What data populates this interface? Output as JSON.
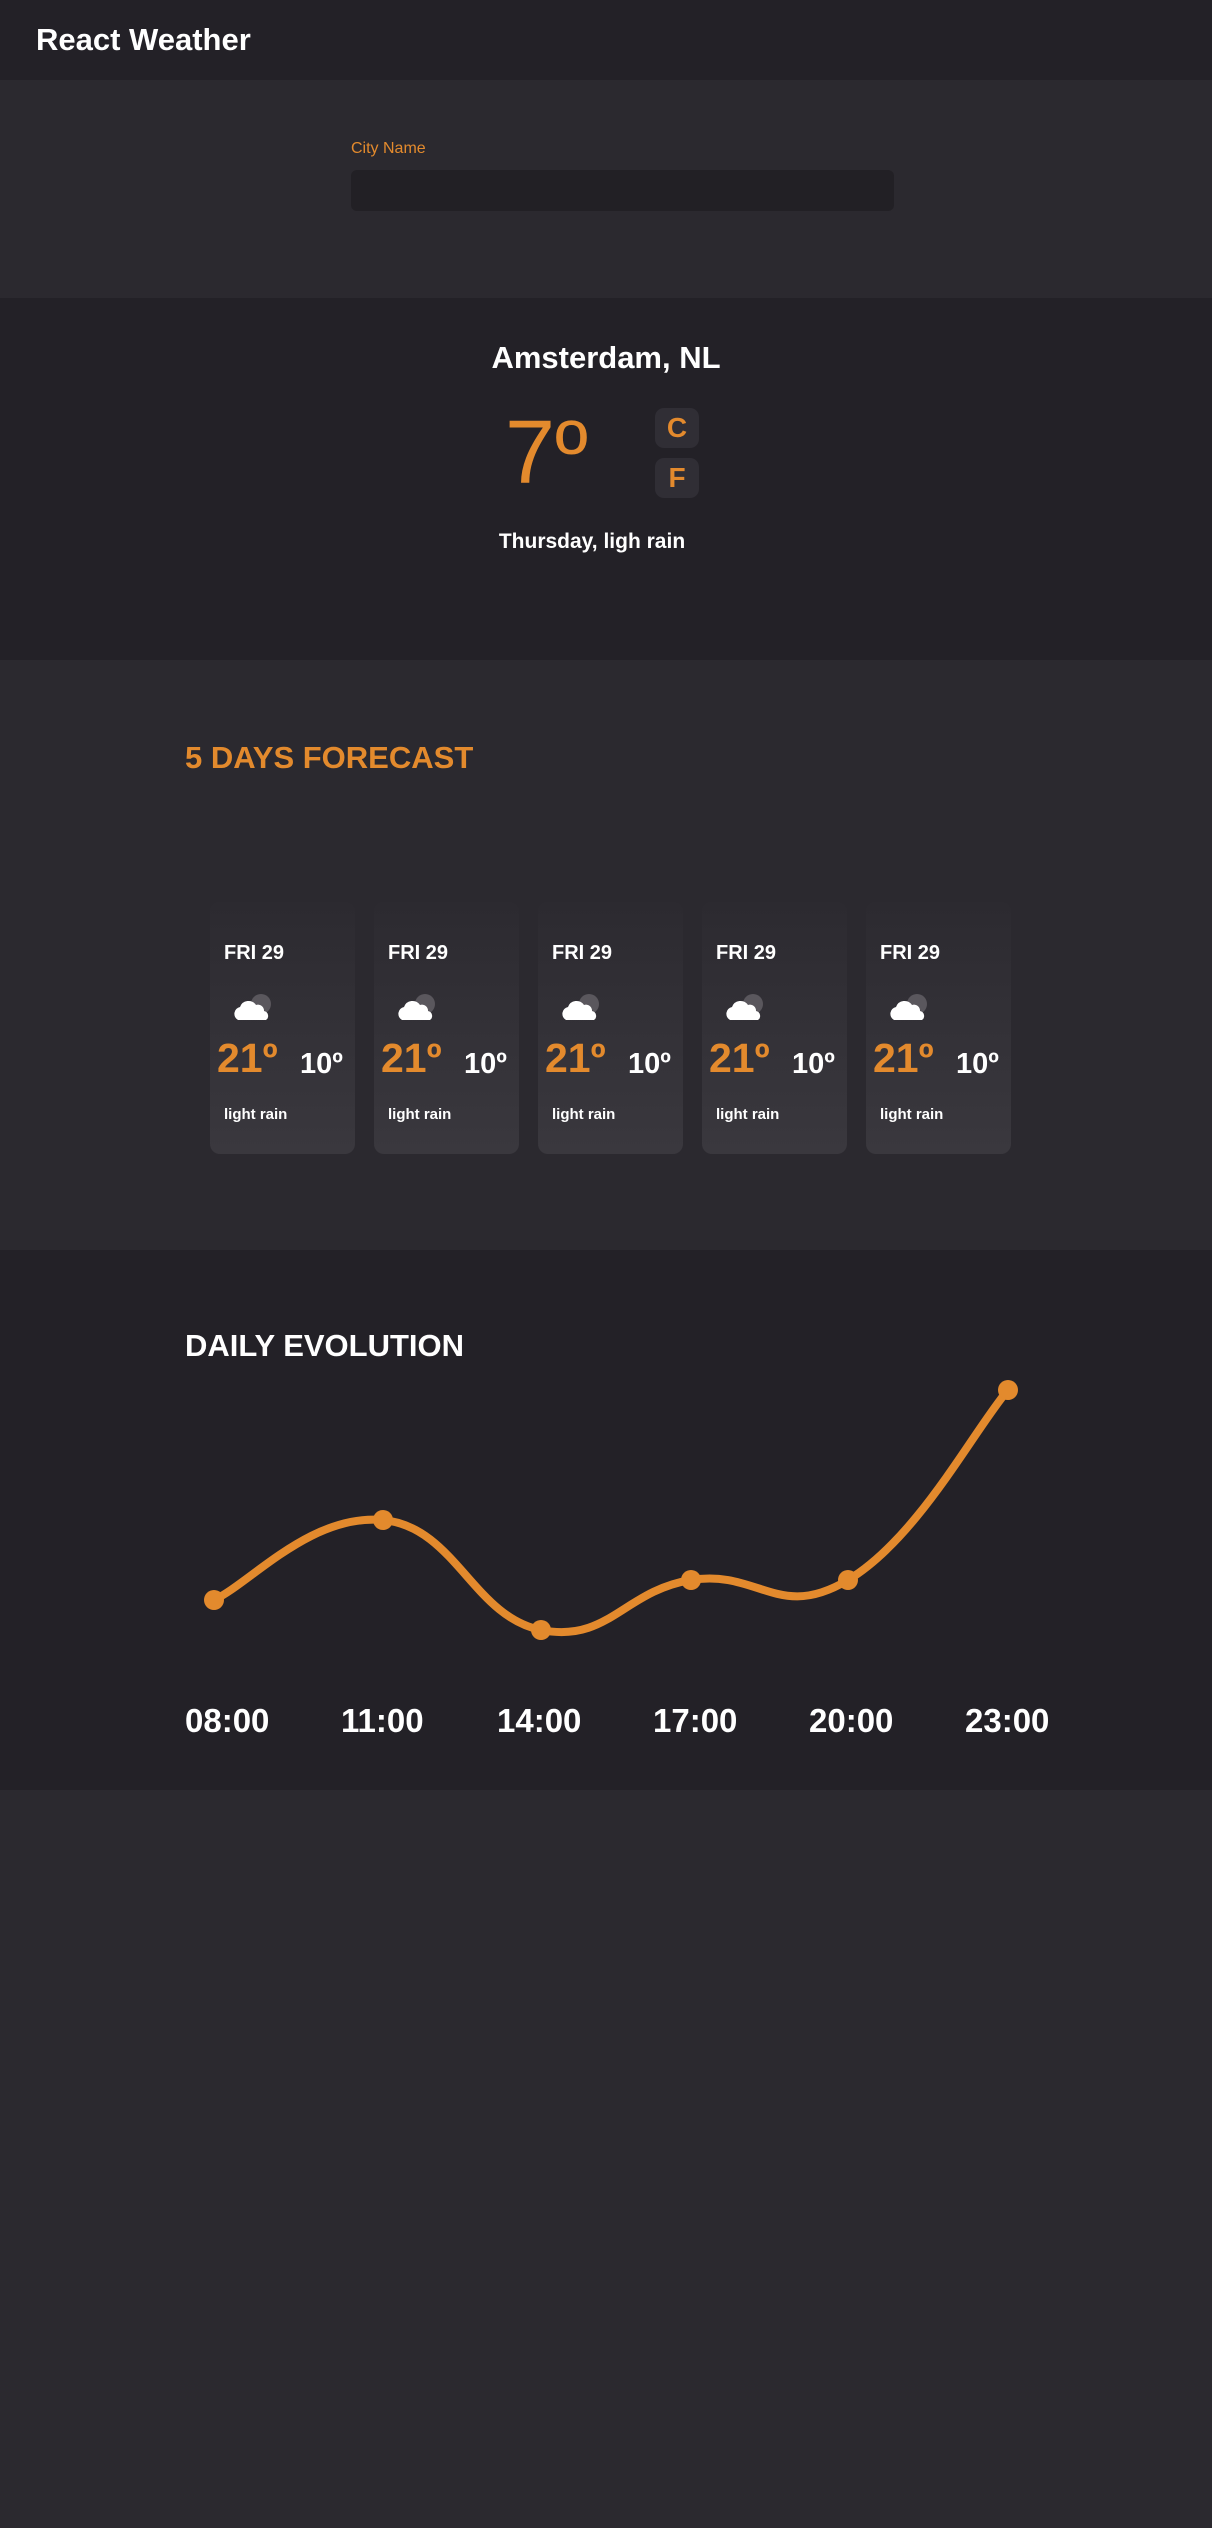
{
  "app": {
    "title": "React Weather"
  },
  "search": {
    "label": "City Name",
    "value": "",
    "placeholder": ""
  },
  "current": {
    "location": "Amsterdam, NL",
    "temperature": "7º",
    "unit_c": "C",
    "unit_f": "F",
    "description": "Thursday, ligh rain"
  },
  "forecast": {
    "title": "5 DAYS FORECAST",
    "days": [
      {
        "day": "FRI 29",
        "icon": "cloud-icon",
        "max": "21º",
        "min": "10º",
        "desc": "light rain"
      },
      {
        "day": "FRI 29",
        "icon": "cloud-icon",
        "max": "21º",
        "min": "10º",
        "desc": "light rain"
      },
      {
        "day": "FRI 29",
        "icon": "cloud-icon",
        "max": "21º",
        "min": "10º",
        "desc": "light rain"
      },
      {
        "day": "FRI 29",
        "icon": "cloud-icon",
        "max": "21º",
        "min": "10º",
        "desc": "light rain"
      },
      {
        "day": "FRI 29",
        "icon": "cloud-icon",
        "max": "21º",
        "min": "10º",
        "desc": "light rain"
      }
    ]
  },
  "evolution": {
    "title": "DAILY EVOLUTION"
  },
  "colors": {
    "accent": "#e38a2d",
    "dark": "#232127",
    "mid": "#2b292f"
  },
  "chart_data": {
    "type": "line",
    "x": [
      "08:00",
      "11:00",
      "14:00",
      "17:00",
      "20:00",
      "23:00"
    ],
    "series": [
      {
        "values": [
          7,
          11,
          5.5,
          8,
          8,
          17.5
        ]
      }
    ],
    "ylim": [
      0,
      20
    ],
    "grid": false
  }
}
